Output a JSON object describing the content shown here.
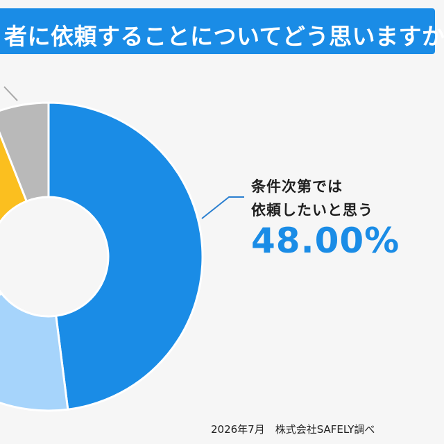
{
  "title": "者に依頼することについてどう思いますか?",
  "chart_data": {
    "type": "pie",
    "donut": true,
    "slices": [
      {
        "label": "条件次第では依頼したいと思う",
        "value": 48.0,
        "color": "#1a8ce6"
      },
      {
        "label": "",
        "value": 16.5,
        "color": "#a6d4fb"
      },
      {
        "label": "",
        "value": 29.5,
        "color": "#fbbf1f"
      },
      {
        "label": "",
        "value": 6.0,
        "color": "#b9b9b9"
      }
    ],
    "callout": {
      "line1": "条件次第では",
      "line2": "依頼したいと思う",
      "value_text": "48.00%"
    }
  },
  "footer": {
    "date": "2026年7月",
    "source": "株式会社SAFELY調べ"
  },
  "colors": {
    "accent": "#1a8ce6",
    "line": "#2a7fd0",
    "grey_line": "#aaaaaa"
  }
}
